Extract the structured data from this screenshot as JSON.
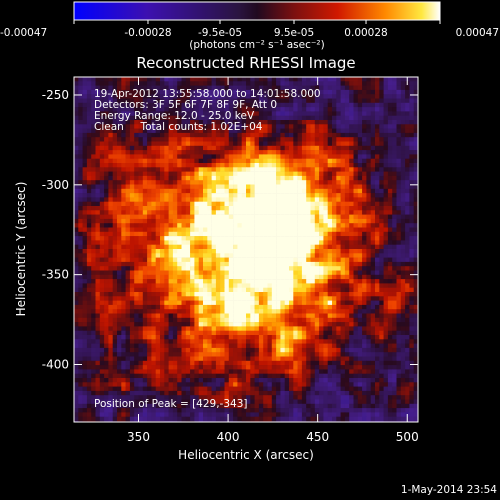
{
  "colorbar": {
    "ticks": [
      "-0.00047",
      "-0.00028",
      "-9.5e-05",
      "9.5e-05",
      "0.00028",
      "0.00047"
    ],
    "tick_values": [
      -0.00047,
      -0.00028,
      -9.5e-05,
      9.5e-05,
      0.00028,
      0.00047
    ],
    "units_label": "(photons cm⁻² s⁻¹ asec⁻²)",
    "range": [
      -0.00047,
      0.00047
    ]
  },
  "chart_data": {
    "type": "heatmap",
    "title": "Reconstructed RHESSI Image",
    "xlabel": "Heliocentric X (arcsec)",
    "ylabel": "Heliocentric Y (arcsec)",
    "xlim": [
      314,
      506
    ],
    "ylim": [
      -432,
      -240
    ],
    "x_ticks": [
      350,
      400,
      450,
      500
    ],
    "y_ticks": [
      -250,
      -300,
      -350,
      -400
    ],
    "peak": [
      429,
      -343
    ],
    "secondary_peak": [
      420,
      -308
    ],
    "colormap": "blue-purple-red-yellow-white"
  },
  "annotations": [
    "19-Apr-2012 13:55:58.000 to 14:01:58.000",
    "Detectors: 3F 5F 6F 7F 8F 9F, Att 0",
    "Energy Range: 12.0 - 25.0 keV",
    "Clean     Total counts: 1.02E+04"
  ],
  "peak_label": "Position of Peak = [429,-343]",
  "footer_date": "1-May-2014 23:54"
}
